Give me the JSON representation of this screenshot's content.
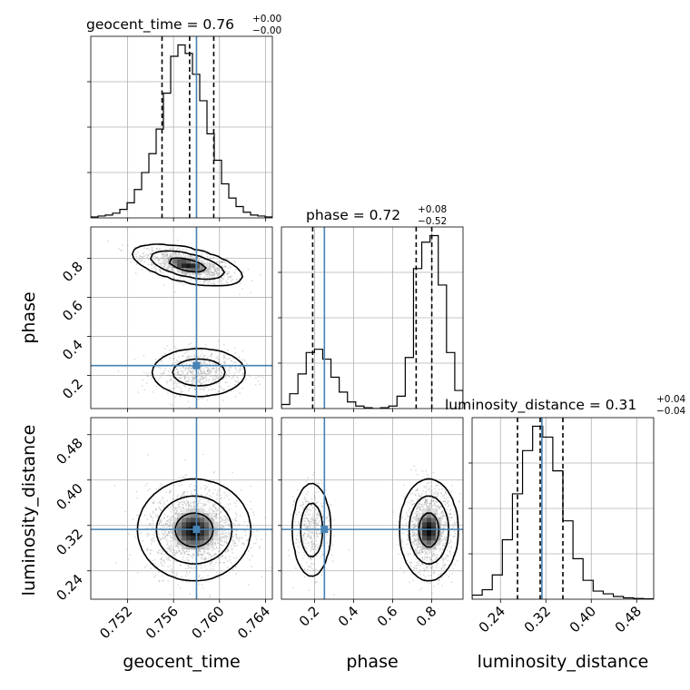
{
  "chart_data": {
    "type": "corner",
    "parameters": [
      "geocent_time",
      "phase",
      "luminosity_distance"
    ],
    "truths": {
      "geocent_time": 0.758,
      "phase": 0.25,
      "luminosity_distance": 0.313
    },
    "titles": [
      {
        "param": "geocent_time",
        "text": "geocent_time = 0.76",
        "sup": "+0.00",
        "sub": "−0.00"
      },
      {
        "param": "phase",
        "text": "phase = 0.72",
        "sup": "+0.08",
        "sub": "−0.52"
      },
      {
        "param": "luminosity_distance",
        "text": "luminosity_distance = 0.31",
        "sup": "+0.04",
        "sub": "−0.04"
      }
    ],
    "axes": {
      "geocent_time": {
        "label": "geocent_time",
        "range": [
          0.7488,
          0.7646
        ],
        "ticks": [
          0.752,
          0.756,
          0.76,
          0.764
        ],
        "tick_labels": [
          "0.752",
          "0.756",
          "0.760",
          "0.764"
        ]
      },
      "phase": {
        "label": "phase",
        "range": [
          0.03,
          0.96
        ],
        "ticks": [
          0.2,
          0.4,
          0.6,
          0.8
        ],
        "tick_labels": [
          "0.2",
          "0.4",
          "0.6",
          "0.8"
        ]
      },
      "luminosity_distance": {
        "label": "luminosity_distance",
        "range": [
          0.19,
          0.51
        ],
        "ticks": [
          0.24,
          0.32,
          0.4,
          0.48
        ],
        "tick_labels": [
          "0.24",
          "0.32",
          "0.40",
          "0.48"
        ]
      }
    },
    "histograms": {
      "geocent_time": {
        "bin_edges_range": [
          0.7488,
          0.7646
        ],
        "counts": [
          1,
          2,
          3,
          5,
          9,
          16,
          30,
          48,
          68,
          94,
          132,
          171,
          183,
          174,
          152,
          124,
          89,
          61,
          36,
          21,
          12,
          6,
          3,
          2,
          1
        ],
        "quantiles": [
          0.755,
          0.7574,
          0.7595
        ]
      },
      "phase": {
        "bin_edges_range": [
          0.03,
          0.96
        ],
        "counts": [
          5,
          18,
          42,
          68,
          72,
          60,
          38,
          20,
          8,
          3,
          1,
          0,
          1,
          3,
          15,
          62,
          170,
          202,
          210,
          150,
          68,
          22
        ],
        "quantiles": [
          0.19,
          0.72,
          0.8
        ]
      },
      "luminosity_distance": {
        "bin_edges_range": [
          0.19,
          0.51
        ],
        "counts": [
          3,
          7,
          18,
          44,
          78,
          110,
          128,
          120,
          95,
          58,
          30,
          14,
          6,
          4,
          2,
          1,
          0.5,
          0.3
        ],
        "quantiles": [
          0.27,
          0.31,
          0.35
        ]
      }
    },
    "contours_2d": [
      {
        "x": "geocent_time",
        "y": "phase",
        "modes": [
          {
            "x": 0.7572,
            "y": 0.76
          },
          {
            "x": 0.7582,
            "y": 0.22
          }
        ],
        "levels": [
          "39%",
          "86%",
          "98.9%"
        ]
      },
      {
        "x": "geocent_time",
        "y": "luminosity_distance",
        "modes": [
          {
            "x": 0.7578,
            "y": 0.312
          }
        ],
        "levels": [
          "39%",
          "86%",
          "98.9%"
        ]
      },
      {
        "x": "phase",
        "y": "luminosity_distance",
        "modes": [
          {
            "x": 0.18,
            "y": 0.31
          },
          {
            "x": 0.79,
            "y": 0.31
          }
        ],
        "levels": [
          "39%",
          "86%",
          "98.9%"
        ]
      }
    ]
  }
}
